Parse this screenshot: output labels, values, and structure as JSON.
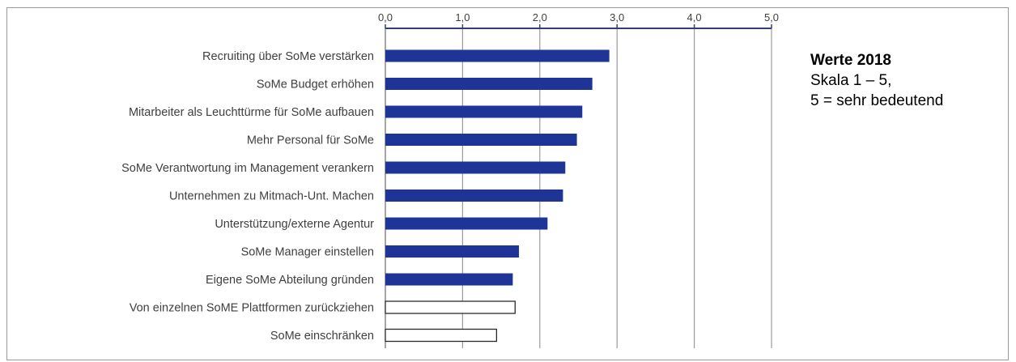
{
  "chart_data": {
    "type": "bar",
    "orientation": "horizontal",
    "title": "",
    "xlabel": "",
    "ylabel": "",
    "xlim": [
      0,
      5
    ],
    "ticks": [
      "0,0",
      "1,0",
      "2,0",
      "3,0",
      "4,0",
      "5,0"
    ],
    "categories": [
      "Recruiting über SoMe verstärken",
      "SoMe Budget erhöhen",
      "Mitarbeiter als Leuchttürme für SoMe aufbauen",
      "Mehr Personal für SoMe",
      "SoMe Verantwortung im Management verankern",
      "Unternehmen zu Mitmach-Unt. Machen",
      "Unterstützung/externe Agentur",
      "SoMe Manager einstellen",
      "Eigene SoMe Abteilung gründen",
      "Von einzelnen SoME Plattformen zurückziehen",
      "SoMe einschränken"
    ],
    "values": [
      2.9,
      2.68,
      2.55,
      2.48,
      2.33,
      2.3,
      2.1,
      1.73,
      1.65,
      1.68,
      1.44
    ],
    "bar_styles": [
      "filled",
      "filled",
      "filled",
      "filled",
      "filled",
      "filled",
      "filled",
      "filled",
      "filled",
      "outline",
      "outline"
    ],
    "grid": true,
    "axis_position": "top"
  },
  "legend": {
    "title": "Werte 2018",
    "line1": "Skala 1 – 5,",
    "line2": "5 = sehr bedeutend"
  },
  "colors": {
    "bar_fill": "#1f3497",
    "bar_outline": "#2b2b2b",
    "axis": "#2e3f7e",
    "grid": "#9b9b9b",
    "text": "#404040"
  }
}
